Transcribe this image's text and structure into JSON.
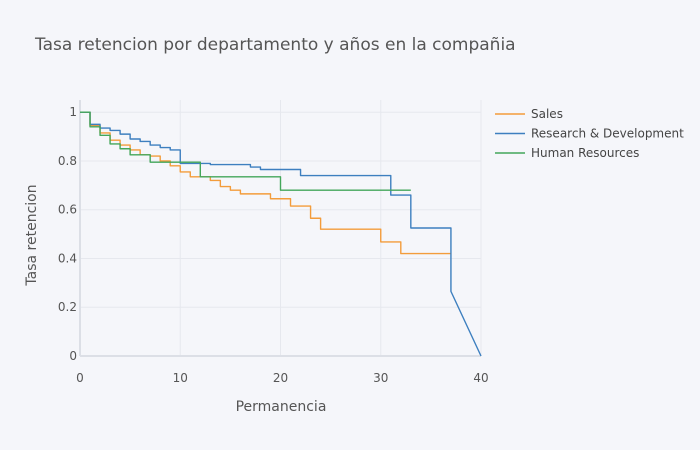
{
  "chart_data": {
    "type": "line",
    "line_shape": "step",
    "title": "Tasa retencion por departamento y años en la compañia",
    "xlabel": "Permanencia",
    "ylabel": "Tasa retencion",
    "xlim": [
      0,
      40
    ],
    "ylim": [
      0,
      1.05
    ],
    "x_ticks": [
      0,
      10,
      20,
      30,
      40
    ],
    "y_ticks": [
      0,
      0.2,
      0.4,
      0.6,
      0.8,
      1
    ],
    "x_tick_labels": [
      "0",
      "10",
      "20",
      "30",
      "40"
    ],
    "y_tick_labels": [
      "0",
      "0.2",
      "0.4",
      "0.6",
      "0.8",
      "1"
    ],
    "grid": true,
    "legend_position": "top-right",
    "series": [
      {
        "name": "Sales",
        "color": "#f39c3b",
        "points": [
          [
            0,
            1
          ],
          [
            1,
            0.945
          ],
          [
            2,
            0.915
          ],
          [
            3,
            0.885
          ],
          [
            4,
            0.865
          ],
          [
            5,
            0.845
          ],
          [
            6,
            0.825
          ],
          [
            7,
            0.82
          ],
          [
            8,
            0.8
          ],
          [
            9,
            0.78
          ],
          [
            10,
            0.755
          ],
          [
            11,
            0.735
          ],
          [
            12,
            0.735
          ],
          [
            13,
            0.72
          ],
          [
            14,
            0.695
          ],
          [
            15,
            0.68
          ],
          [
            16,
            0.665
          ],
          [
            17,
            0.665
          ],
          [
            18,
            0.665
          ],
          [
            19,
            0.645
          ],
          [
            20,
            0.645
          ],
          [
            21,
            0.615
          ],
          [
            22,
            0.615
          ],
          [
            23,
            0.565
          ],
          [
            24,
            0.52
          ],
          [
            25,
            0.52
          ],
          [
            26,
            0.52
          ],
          [
            27,
            0.52
          ],
          [
            28,
            0.52
          ],
          [
            29,
            0.52
          ],
          [
            30,
            0.468
          ],
          [
            31,
            0.468
          ],
          [
            32,
            0.42
          ],
          [
            33,
            0.42
          ],
          [
            34,
            0.42
          ],
          [
            35,
            0.42
          ],
          [
            36,
            0.42
          ],
          [
            37,
            0.42
          ]
        ]
      },
      {
        "name": "Research & Development",
        "color": "#3d7fbf",
        "points": [
          [
            0,
            1
          ],
          [
            1,
            0.95
          ],
          [
            2,
            0.935
          ],
          [
            3,
            0.925
          ],
          [
            4,
            0.91
          ],
          [
            5,
            0.89
          ],
          [
            6,
            0.88
          ],
          [
            7,
            0.865
          ],
          [
            8,
            0.855
          ],
          [
            9,
            0.845
          ],
          [
            10,
            0.79
          ],
          [
            11,
            0.79
          ],
          [
            12,
            0.79
          ],
          [
            13,
            0.785
          ],
          [
            14,
            0.785
          ],
          [
            15,
            0.785
          ],
          [
            16,
            0.785
          ],
          [
            17,
            0.775
          ],
          [
            18,
            0.765
          ],
          [
            19,
            0.765
          ],
          [
            20,
            0.765
          ],
          [
            21,
            0.765
          ],
          [
            22,
            0.74
          ],
          [
            23,
            0.74
          ],
          [
            24,
            0.74
          ],
          [
            25,
            0.74
          ],
          [
            26,
            0.74
          ],
          [
            27,
            0.74
          ],
          [
            28,
            0.74
          ],
          [
            29,
            0.74
          ],
          [
            30,
            0.74
          ],
          [
            31,
            0.66
          ],
          [
            32,
            0.66
          ],
          [
            33,
            0.525
          ],
          [
            34,
            0.525
          ],
          [
            35,
            0.525
          ],
          [
            36,
            0.525
          ],
          [
            37,
            0.265
          ],
          [
            40,
            0
          ]
        ]
      },
      {
        "name": "Human Resources",
        "color": "#43a65a",
        "points": [
          [
            0,
            1
          ],
          [
            1,
            0.94
          ],
          [
            2,
            0.905
          ],
          [
            3,
            0.87
          ],
          [
            4,
            0.85
          ],
          [
            5,
            0.825
          ],
          [
            6,
            0.825
          ],
          [
            7,
            0.795
          ],
          [
            8,
            0.795
          ],
          [
            9,
            0.795
          ],
          [
            10,
            0.795
          ],
          [
            11,
            0.795
          ],
          [
            12,
            0.735
          ],
          [
            13,
            0.735
          ],
          [
            14,
            0.735
          ],
          [
            15,
            0.735
          ],
          [
            16,
            0.735
          ],
          [
            17,
            0.735
          ],
          [
            18,
            0.735
          ],
          [
            19,
            0.735
          ],
          [
            20,
            0.68
          ],
          [
            21,
            0.68
          ],
          [
            22,
            0.68
          ],
          [
            23,
            0.68
          ],
          [
            24,
            0.68
          ],
          [
            25,
            0.68
          ],
          [
            26,
            0.68
          ],
          [
            27,
            0.68
          ],
          [
            28,
            0.68
          ],
          [
            29,
            0.68
          ],
          [
            30,
            0.68
          ],
          [
            31,
            0.68
          ],
          [
            32,
            0.68
          ],
          [
            33,
            0.68
          ]
        ]
      }
    ]
  }
}
